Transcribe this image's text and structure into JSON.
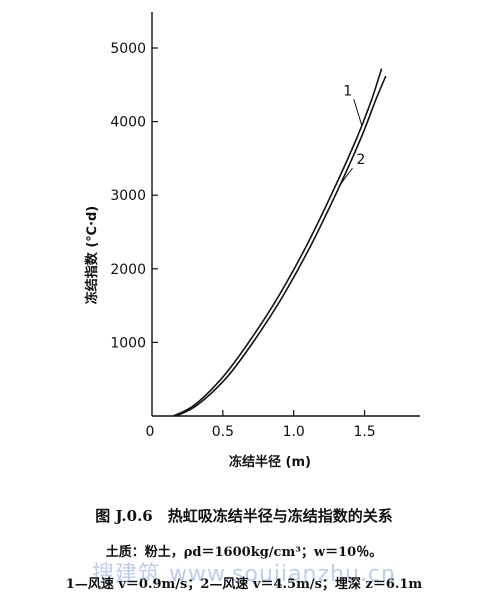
{
  "chart_data": {
    "type": "line",
    "ylabel": "冻结指数 (℃·d)",
    "xlabel": "冻结半径 (m)",
    "xlim": [
      0,
      1.75
    ],
    "ylim": [
      0,
      5000
    ],
    "x_ticks": [
      "0",
      "0.5",
      "1.0",
      "1.5"
    ],
    "y_ticks": [
      "1000",
      "2000",
      "3000",
      "4000",
      "5000"
    ],
    "grid": false,
    "series": [
      {
        "name": "1",
        "x": [
          0.15,
          0.3,
          0.5,
          0.7,
          0.9,
          1.1,
          1.3,
          1.45,
          1.55,
          1.62
        ],
        "y": [
          0,
          150,
          530,
          1050,
          1650,
          2350,
          3150,
          3800,
          4300,
          4720
        ]
      },
      {
        "name": "2",
        "x": [
          0.17,
          0.32,
          0.53,
          0.73,
          0.93,
          1.13,
          1.33,
          1.48,
          1.58,
          1.65
        ],
        "y": [
          0,
          150,
          530,
          1050,
          1650,
          2350,
          3150,
          3800,
          4300,
          4620
        ]
      }
    ]
  },
  "caption": {
    "title": "图 J.0.6　热虹吸冻结半径与冻结指数的关系",
    "soil": "土质：粉土，ρd＝1600kg/cm³；w＝10％。",
    "legend": "1—风速 v＝0.9m/s；2—风速 v＝4.5m/s；埋深 z＝6.1m"
  },
  "watermark": "搜建筑  www.soujianzhu.cn"
}
